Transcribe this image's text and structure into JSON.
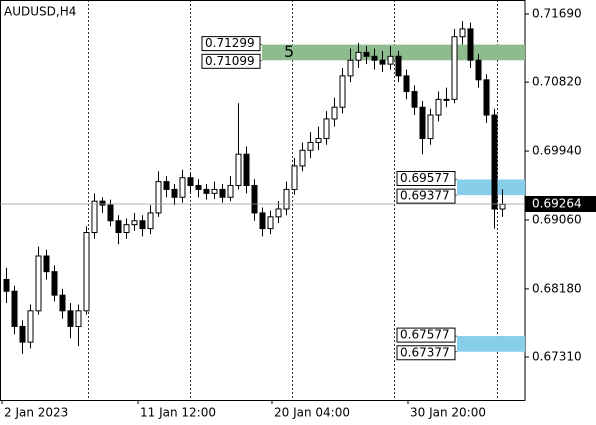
{
  "chart_data": {
    "type": "candlestick",
    "title": "AUDUSD,H4",
    "open": [
      0.683,
      0.6815,
      0.677,
      0.675,
      0.679,
      0.686,
      0.684,
      0.681,
      0.679,
      0.677,
      0.679,
      0.689,
      0.693,
      0.6925,
      0.6905,
      0.689,
      0.69,
      0.6905,
      0.6895,
      0.6915,
      0.6955,
      0.6945,
      0.6935,
      0.696,
      0.695,
      0.6945,
      0.694,
      0.6945,
      0.6935,
      0.695,
      0.699,
      0.695,
      0.6915,
      0.6895,
      0.691,
      0.692,
      0.6945,
      0.6975,
      0.6995,
      0.7005,
      0.701,
      0.7035,
      0.705,
      0.709,
      0.711,
      0.712,
      0.7115,
      0.711,
      0.7105,
      0.7115,
      0.709,
      0.707,
      0.705,
      0.701,
      0.704,
      0.706,
      0.706,
      0.714,
      0.715,
      0.711,
      0.7085,
      0.704,
      0.692
    ],
    "high": [
      0.6845,
      0.6822,
      0.6778,
      0.6798,
      0.6872,
      0.6868,
      0.6848,
      0.6818,
      0.68,
      0.6798,
      0.6898,
      0.694,
      0.6935,
      0.6932,
      0.6912,
      0.6908,
      0.6915,
      0.6912,
      0.6925,
      0.6968,
      0.6962,
      0.6952,
      0.697,
      0.6966,
      0.6958,
      0.6952,
      0.6955,
      0.6952,
      0.6962,
      0.7055,
      0.7,
      0.6958,
      0.6922,
      0.6918,
      0.693,
      0.6955,
      0.6985,
      0.7005,
      0.7018,
      0.7025,
      0.7045,
      0.7062,
      0.71,
      0.7125,
      0.7132,
      0.7128,
      0.7125,
      0.7122,
      0.7128,
      0.7122,
      0.7098,
      0.7078,
      0.7058,
      0.7048,
      0.707,
      0.7075,
      0.715,
      0.716,
      0.7158,
      0.7118,
      0.7092,
      0.7048,
      0.6945
    ],
    "low": [
      0.68,
      0.676,
      0.6735,
      0.6742,
      0.6785,
      0.683,
      0.6802,
      0.678,
      0.6755,
      0.6745,
      0.6785,
      0.6882,
      0.6915,
      0.6898,
      0.6875,
      0.6882,
      0.6892,
      0.6885,
      0.6888,
      0.691,
      0.6935,
      0.6925,
      0.6928,
      0.694,
      0.6935,
      0.6932,
      0.6933,
      0.6928,
      0.693,
      0.6945,
      0.694,
      0.6905,
      0.6885,
      0.6888,
      0.6902,
      0.6912,
      0.6938,
      0.6968,
      0.6985,
      0.6995,
      0.7002,
      0.7025,
      0.7042,
      0.7082,
      0.71,
      0.7105,
      0.7098,
      0.7095,
      0.7098,
      0.7082,
      0.706,
      0.704,
      0.699,
      0.7002,
      0.7032,
      0.705,
      0.7055,
      0.713,
      0.71,
      0.7075,
      0.703,
      0.6895,
      0.691
    ],
    "close": [
      0.6815,
      0.677,
      0.675,
      0.679,
      0.686,
      0.684,
      0.681,
      0.679,
      0.677,
      0.679,
      0.689,
      0.693,
      0.6925,
      0.6905,
      0.689,
      0.69,
      0.6905,
      0.6895,
      0.6915,
      0.6955,
      0.6945,
      0.6935,
      0.696,
      0.695,
      0.6945,
      0.694,
      0.6945,
      0.6935,
      0.695,
      0.699,
      0.695,
      0.6915,
      0.6895,
      0.691,
      0.692,
      0.6945,
      0.6975,
      0.6995,
      0.7005,
      0.701,
      0.7035,
      0.705,
      0.709,
      0.711,
      0.712,
      0.7115,
      0.711,
      0.7105,
      0.7115,
      0.709,
      0.707,
      0.705,
      0.701,
      0.704,
      0.706,
      0.706,
      0.714,
      0.715,
      0.711,
      0.7085,
      0.704,
      0.692,
      0.6926
    ],
    "ylim": [
      0.66761,
      0.71869
    ],
    "yticks": [
      {
        "value": 0.7169,
        "label": "0.71690"
      },
      {
        "value": 0.7082,
        "label": "0.70820"
      },
      {
        "value": 0.6994,
        "label": "0.69940"
      },
      {
        "value": 0.6906,
        "label": "0.69060"
      },
      {
        "value": 0.6818,
        "label": "0.68180"
      },
      {
        "value": 0.6731,
        "label": "0.67310"
      }
    ],
    "xticks": [
      {
        "value": -0.5,
        "label": "2 Jan 2023"
      },
      {
        "value": 16.5,
        "label": "11 Jan 12:00"
      },
      {
        "value": 33.25,
        "label": "20 Jan 04:00"
      },
      {
        "value": 50.25,
        "label": "30 Jan 20:00"
      }
    ],
    "xgrid": [
      10.25,
      23,
      35.75,
      48.5,
      61.375
    ],
    "current_price": 0.69264,
    "zones": [
      {
        "top": 0.71299,
        "bottom": 0.71099,
        "color": "#8fbc8f",
        "label": "5",
        "start": 32
      },
      {
        "top": 0.69577,
        "bottom": 0.69377,
        "color": "#87ceeb",
        "start": 56.375
      },
      {
        "top": 0.67577,
        "bottom": 0.67377,
        "color": "#87ceeb",
        "start": 56.375
      }
    ],
    "bull_color": "#ffffff",
    "bear_color": "#000000"
  }
}
